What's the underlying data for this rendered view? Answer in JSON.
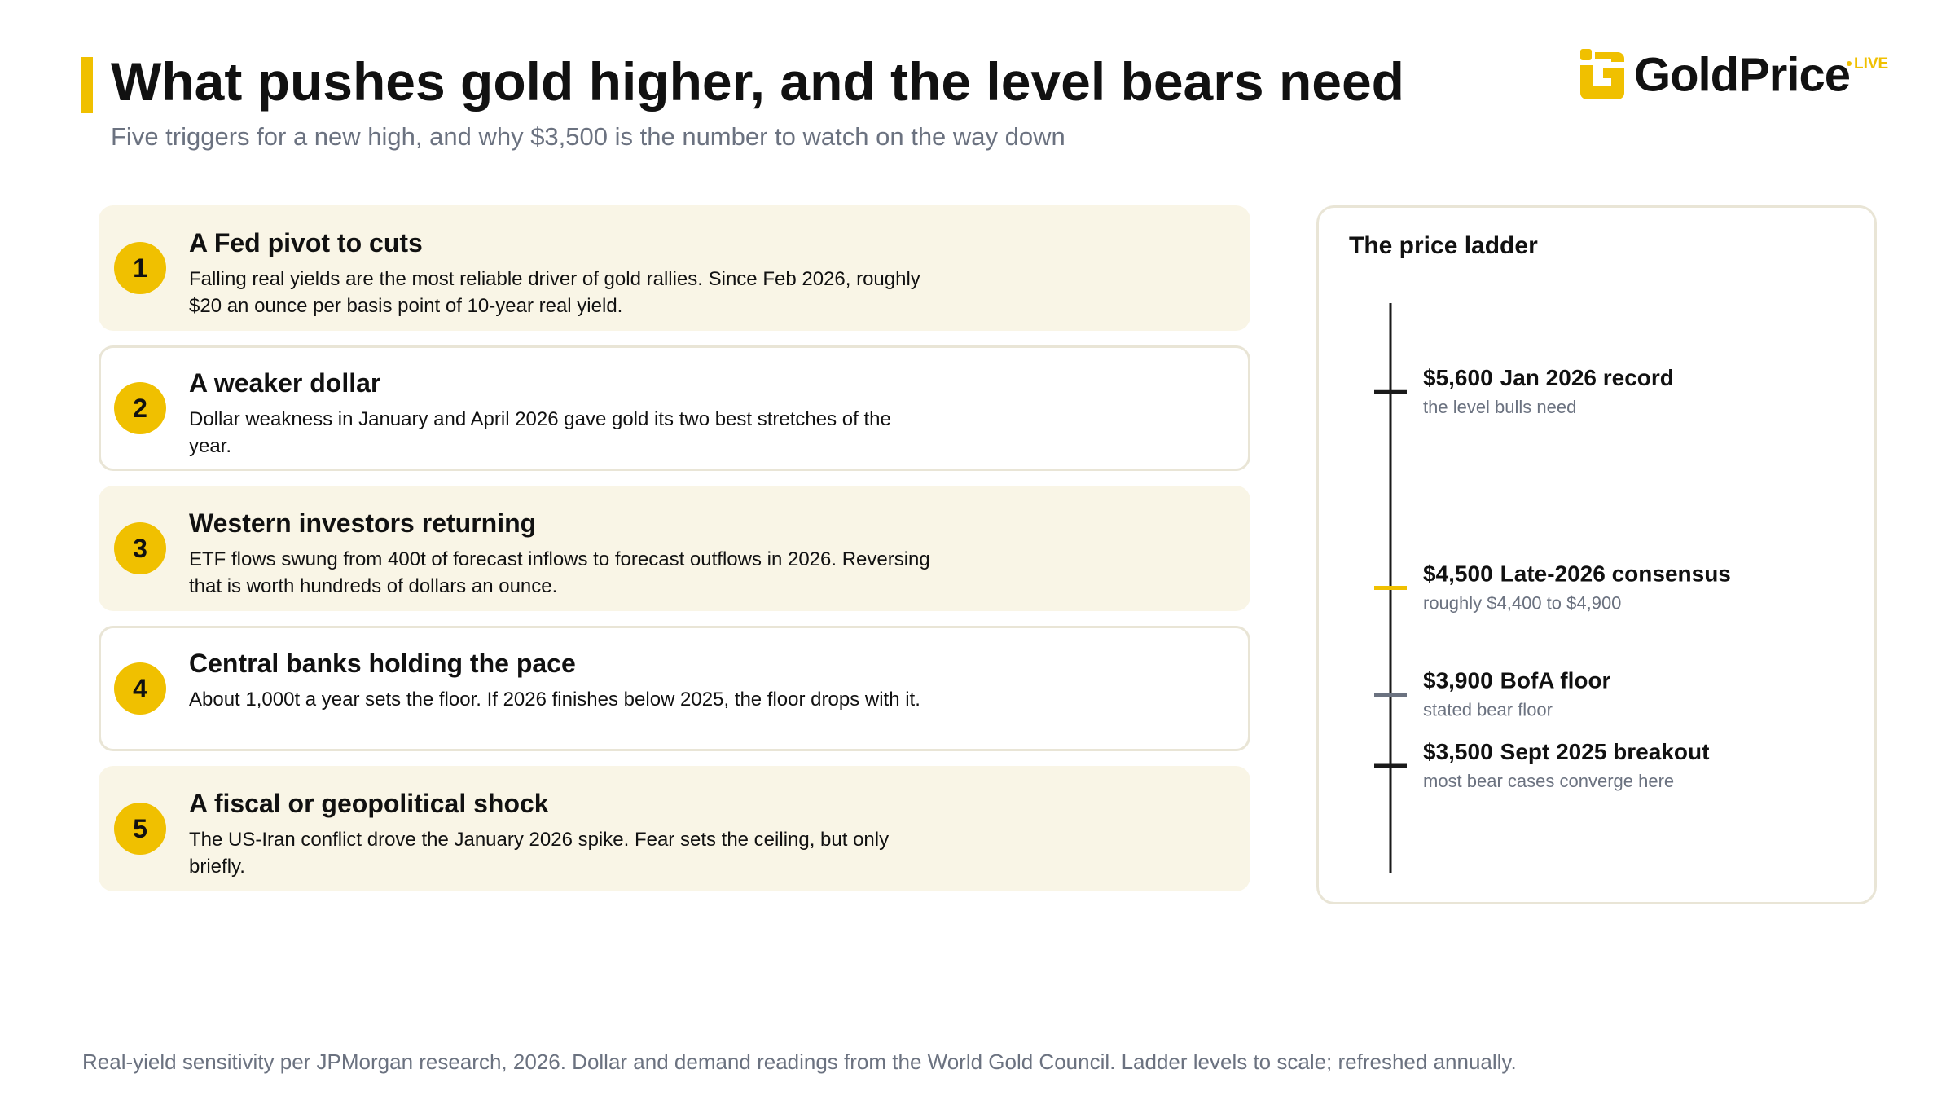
{
  "header": {
    "title": "What pushes gold higher, and the level bears need",
    "subtitle": "Five triggers for a new high, and why $3,500 is the number to watch on the way down"
  },
  "logo": {
    "name": "GoldPrice",
    "badge": "LIVE"
  },
  "triggers": [
    {
      "number": 1,
      "title": "A Fed pivot to cuts",
      "text": "Falling real yields are the most reliable driver of gold rallies. Since Feb 2026, roughly $20 an ounce per basis point of 10-year real yield."
    },
    {
      "number": 2,
      "title": "A weaker dollar",
      "text": "Dollar weakness in January and April 2026 gave gold its two best stretches of the year."
    },
    {
      "number": 3,
      "title": "Western investors returning",
      "text": "ETF flows swung from 400t of forecast inflows to forecast outflows in 2026. Reversing that is worth hundreds of dollars an ounce."
    },
    {
      "number": 4,
      "title": "Central banks holding the pace",
      "text": "About 1,000t a year sets the floor. If 2026 finishes below 2025, the floor drops with it."
    },
    {
      "number": 5,
      "title": "A fiscal or geopolitical shock",
      "text": "The US-Iran conflict drove the January 2026 spike. Fear sets the ceiling, but only briefly."
    }
  ],
  "ladder": {
    "title": "The price ladder",
    "ylim": [
      2900,
      6100
    ],
    "levels": [
      {
        "value": 5600,
        "label": "$5,600",
        "name": "Jan 2026 record",
        "note": "the level bulls need",
        "color": "#1a1a1a"
      },
      {
        "value": 4500,
        "label": "$4,500",
        "name": "Late-2026 consensus",
        "note": "roughly $4,400 to $4,900",
        "color": "#f0c000"
      },
      {
        "value": 3900,
        "label": "$3,900",
        "name": "BofA floor",
        "note": "stated bear floor",
        "color": "#6b7280"
      },
      {
        "value": 3500,
        "label": "$3,500",
        "name": "Sept 2025 breakout",
        "note": "most bear cases converge here",
        "color": "#1a1a1a"
      }
    ]
  },
  "footnote": "Real-yield sensitivity per JPMorgan research, 2026. Dollar and demand readings from the World Gold Council. Ladder levels to scale; refreshed annually."
}
